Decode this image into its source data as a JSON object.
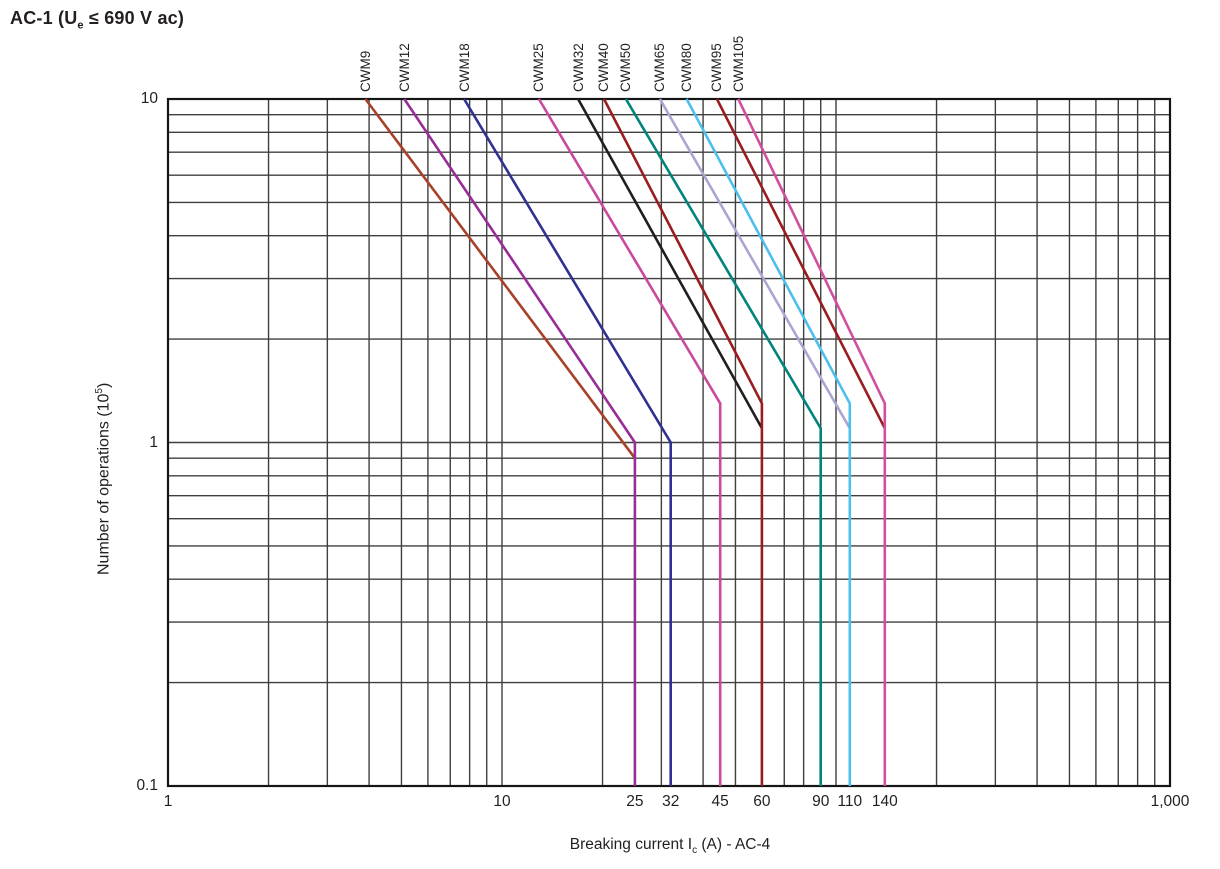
{
  "header": {
    "title_prefix": "AC-1 (U",
    "title_sub": "e",
    "title_suffix": " ≤ 690 V ac)"
  },
  "axes": {
    "y_label_prefix": "Number of operations (10",
    "y_label_sup": "5",
    "y_label_suffix": ")",
    "x_label_prefix": "Breaking current I",
    "x_label_sub": "c",
    "x_label_suffix": " (A) - AC-4"
  },
  "colors": {
    "background": "#ffffff",
    "grid": "#3f3f3f",
    "axis_border": "#151515",
    "text": "#231f20"
  },
  "chart_data": {
    "type": "line",
    "title": "AC-1 (Ue ≤ 690 V ac)",
    "xlabel": "Breaking current Ic (A) - AC-4",
    "ylabel": "Number of operations (10^5)",
    "x_scale": "log",
    "y_scale": "log",
    "xlim": [
      1,
      1000
    ],
    "ylim": [
      0.1,
      10
    ],
    "grid": true,
    "legend_position": "labels-above-plot",
    "y_tick_labels": [
      {
        "value": 10,
        "label": "10"
      },
      {
        "value": 1,
        "label": "1"
      },
      {
        "value": 0.1,
        "label": "0.1"
      }
    ],
    "x_tick_labels": [
      {
        "value": 1,
        "label": "1"
      },
      {
        "value": 10,
        "label": "10"
      },
      {
        "value": 1000,
        "label": "1,000"
      }
    ],
    "x_current_tick_labels": [
      {
        "value": 25,
        "label": "25"
      },
      {
        "value": 32,
        "label": "32"
      },
      {
        "value": 45,
        "label": "45"
      },
      {
        "value": 60,
        "label": "60"
      },
      {
        "value": 90,
        "label": "90"
      },
      {
        "value": 110,
        "label": "110"
      },
      {
        "value": 140,
        "label": "140"
      }
    ],
    "series": [
      {
        "name": "CWM9",
        "color": "#a7422a",
        "points": [
          [
            3.9,
            10
          ],
          [
            25,
            0.9
          ]
        ]
      },
      {
        "name": "CWM12",
        "color": "#982d98",
        "points": [
          [
            5.1,
            10
          ],
          [
            25,
            1.0
          ],
          [
            25,
            0.1
          ]
        ]
      },
      {
        "name": "CWM18",
        "color": "#2f3191",
        "points": [
          [
            7.7,
            10
          ],
          [
            32,
            1.0
          ],
          [
            32,
            0.1
          ]
        ]
      },
      {
        "name": "CWM25",
        "color": "#c9499c",
        "points": [
          [
            12.9,
            10
          ],
          [
            45,
            1.3
          ],
          [
            45,
            0.1
          ]
        ]
      },
      {
        "name": "CWM32",
        "color": "#221e1f",
        "points": [
          [
            16.9,
            10
          ],
          [
            60,
            1.1
          ]
        ]
      },
      {
        "name": "CWM40",
        "color": "#9a1c20",
        "points": [
          [
            20.2,
            10
          ],
          [
            60,
            1.3
          ],
          [
            60,
            0.1
          ]
        ]
      },
      {
        "name": "CWM50",
        "color": "#00847c",
        "points": [
          [
            23.5,
            10
          ],
          [
            90,
            1.1
          ],
          [
            90,
            0.1
          ]
        ]
      },
      {
        "name": "CWM65",
        "color": "#aaa5d2",
        "points": [
          [
            29.7,
            10
          ],
          [
            110,
            1.1
          ]
        ]
      },
      {
        "name": "CWM80",
        "color": "#4cc0ec",
        "points": [
          [
            35.7,
            10
          ],
          [
            110,
            1.3
          ],
          [
            110,
            0.1
          ]
        ]
      },
      {
        "name": "CWM95",
        "color": "#9a1c20",
        "points": [
          [
            44,
            10
          ],
          [
            140,
            1.1
          ]
        ]
      },
      {
        "name": "CWM105",
        "color": "#d14f9f",
        "points": [
          [
            51,
            10
          ],
          [
            140,
            1.3
          ],
          [
            140,
            0.1
          ]
        ]
      }
    ]
  }
}
